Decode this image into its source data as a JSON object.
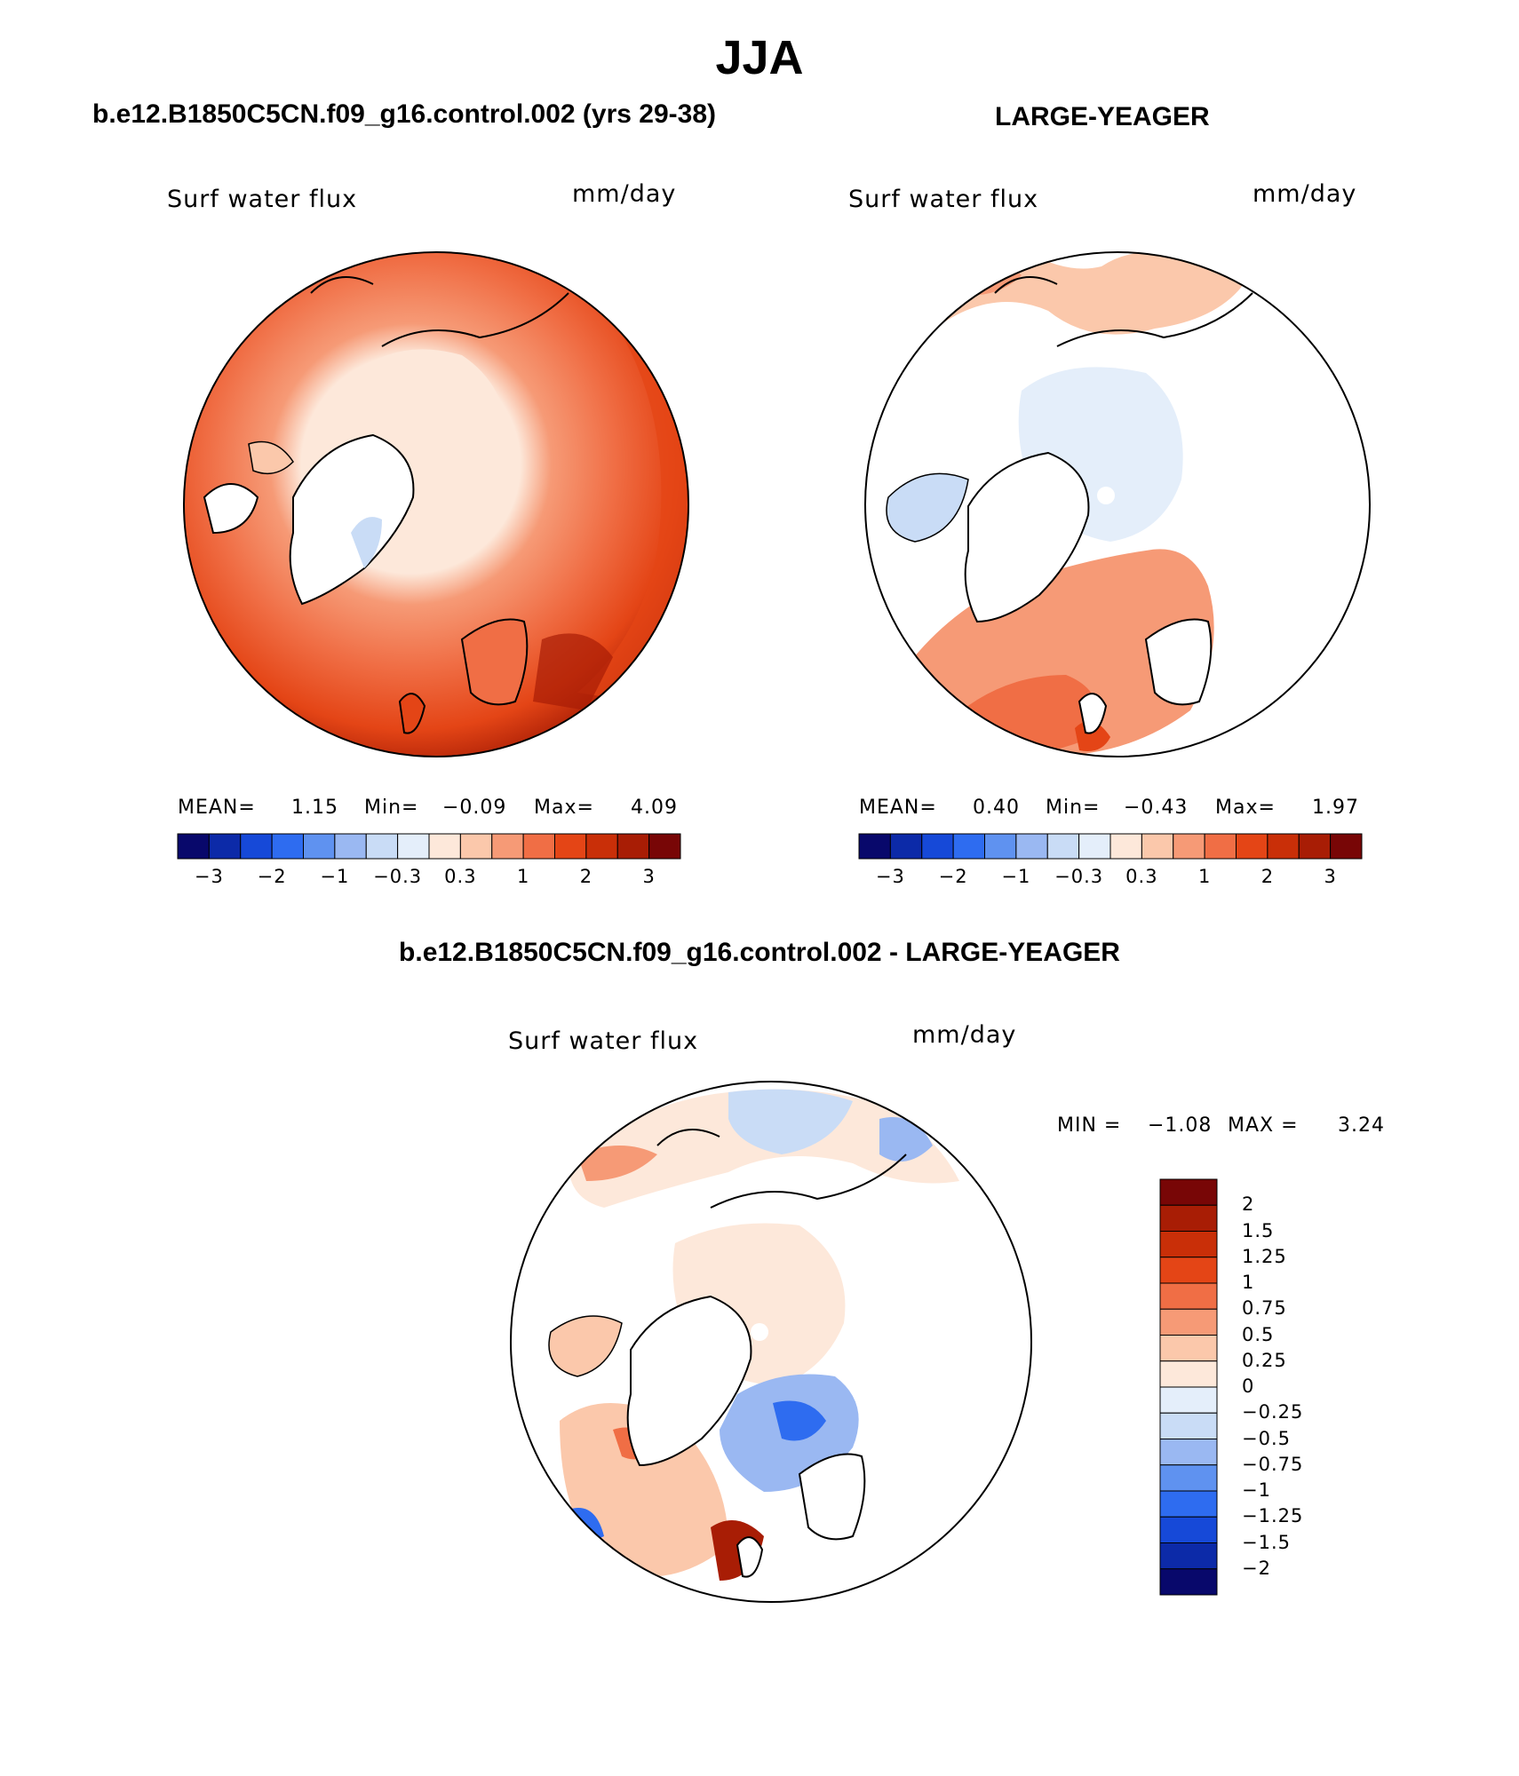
{
  "page_title": "JJA",
  "panels": [
    {
      "title": "b.e12.B1850C5CN.f09_g16.control.002 (yrs 29-38)",
      "field_label": "Surf water flux",
      "units": "mm/day",
      "stats": {
        "mean_label": "MEAN=",
        "mean": "1.15",
        "min_label": "Min=",
        "min": "−0.09",
        "max_label": "Max=",
        "max": "4.09"
      }
    },
    {
      "title": "LARGE-YEAGER",
      "field_label": "Surf water flux",
      "units": "mm/day",
      "stats": {
        "mean_label": "MEAN=",
        "mean": "0.40",
        "min_label": "Min=",
        "min": "−0.43",
        "max_label": "Max=",
        "max": "1.97"
      }
    },
    {
      "title": "b.e12.B1850C5CN.f09_g16.control.002 - LARGE-YEAGER",
      "field_label": "Surf water flux",
      "units": "mm/day",
      "stats": {
        "min_label": "MIN =",
        "min": "−1.08",
        "max_label": "MAX =",
        "max": "3.24"
      }
    }
  ],
  "horizontal_colorbar": {
    "colors": [
      "#08086b",
      "#0c2aa8",
      "#1649d8",
      "#2e6cf0",
      "#5f92f0",
      "#9ab8f2",
      "#c9dcf6",
      "#e4eefa",
      "#fde8da",
      "#fbc8ab",
      "#f69a76",
      "#f06e45",
      "#e44516",
      "#c92f08",
      "#a81d05",
      "#780606"
    ],
    "ticks": [
      "−3",
      "−2",
      "−1",
      "−0.3",
      "0.3",
      "1",
      "2",
      "3"
    ]
  },
  "vertical_colorbar": {
    "colors": [
      "#780606",
      "#a81d05",
      "#c92f08",
      "#e44516",
      "#f06e45",
      "#f69a76",
      "#fbc8ab",
      "#fde8da",
      "#e4eefa",
      "#c9dcf6",
      "#9ab8f2",
      "#5f92f0",
      "#2e6cf0",
      "#1649d8",
      "#0c2aa8",
      "#08086b"
    ],
    "labels": [
      "2",
      "1.5",
      "1.25",
      "1",
      "0.75",
      "0.5",
      "0.25",
      "0",
      "−0.25",
      "−0.5",
      "−0.75",
      "−1",
      "−1.25",
      "−1.5",
      "−2"
    ]
  }
}
